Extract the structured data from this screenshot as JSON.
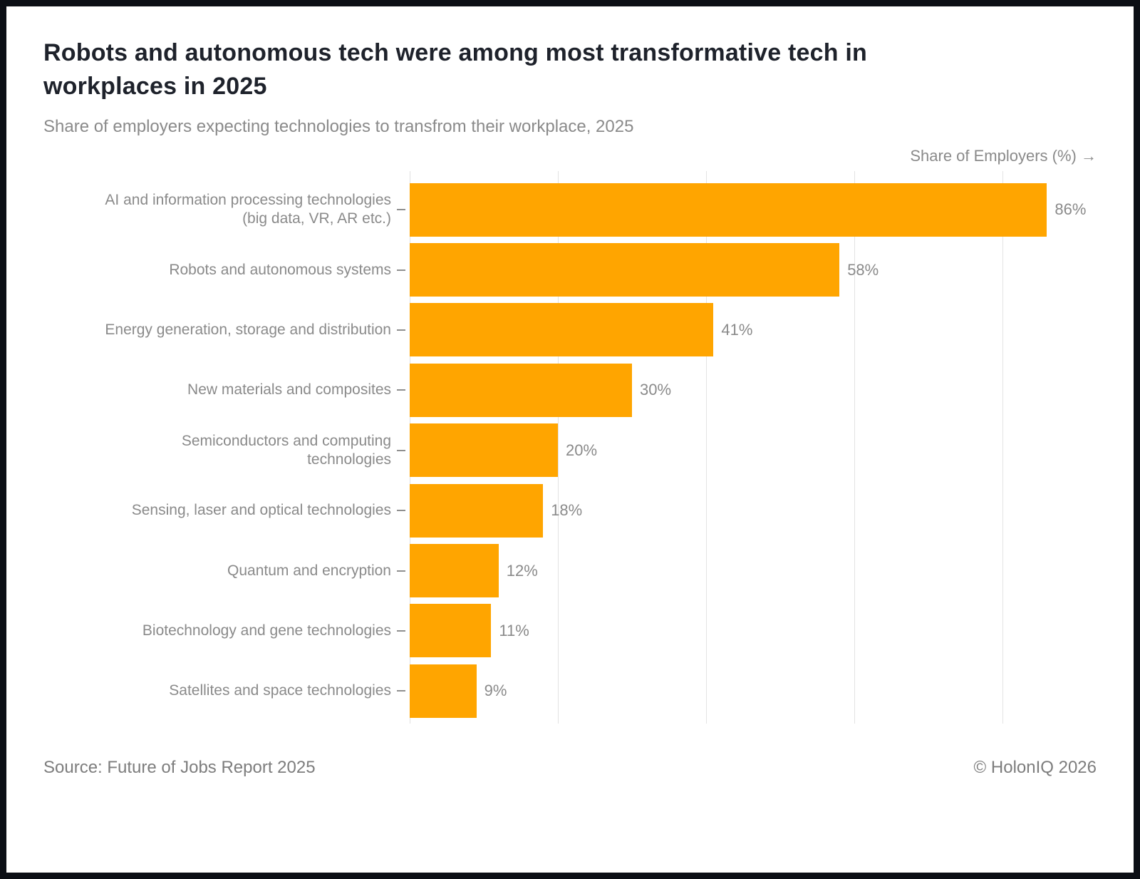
{
  "header": {
    "title": "Robots and autonomous tech were among most transformative tech in\nworkplaces in 2025",
    "subtitle": "Share of employers expecting technologies to transfrom their workplace, 2025"
  },
  "chart_data": {
    "type": "bar",
    "orientation": "horizontal",
    "title": "Robots and autonomous tech were among most transformative tech in workplaces in 2025",
    "subtitle": "Share of employers expecting technologies to transfrom their workplace, 2025",
    "xlabel": "Share of Employers (%) →",
    "ylabel": "",
    "categories": [
      "AI and information processing technologies\n(big data, VR, AR etc.)",
      "Robots and autonomous systems",
      "Energy generation, storage and distribution",
      "New materials and composites",
      "Semiconductors and computing\ntechnologies",
      "Sensing, laser and optical technologies",
      "Quantum and encryption",
      "Biotechnology and gene technologies",
      "Satellites and space technologies"
    ],
    "values": [
      86,
      58,
      41,
      30,
      20,
      18,
      12,
      11,
      9
    ],
    "value_labels": [
      "86%",
      "58%",
      "41%",
      "30%",
      "20%",
      "18%",
      "12%",
      "11%",
      "9%"
    ],
    "xlim": [
      0,
      90
    ],
    "gridlines_x": [
      0,
      20,
      40,
      60,
      80
    ],
    "grid": true,
    "legend": "none",
    "bar_color": "#FFA500",
    "label_color": "#8a8a8a",
    "gridline_color": "#e3e3e3"
  },
  "footer": {
    "source": "Source: Future of Jobs Report 2025",
    "copyright": "© HolonIQ 2026"
  }
}
